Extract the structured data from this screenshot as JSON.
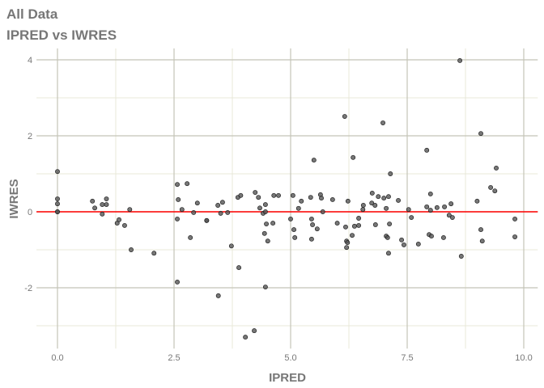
{
  "chart_data": {
    "type": "scatter",
    "title": "All Data",
    "subtitle": "IPRED vs IWRES",
    "xlabel": "IPRED",
    "ylabel": "IWRES",
    "xlim": [
      -0.45,
      10.3
    ],
    "ylim": [
      -3.6,
      4.3
    ],
    "xticks": [
      0,
      2.5,
      5,
      7.5,
      10
    ],
    "xtick_labels": [
      "0.0",
      "2.5",
      "5.0",
      "7.5",
      "10.0"
    ],
    "yticks": [
      -2,
      0,
      2,
      4
    ],
    "ytick_labels": [
      "-2",
      "0",
      "2",
      "4"
    ],
    "grid": true,
    "reference_line": {
      "y": 0,
      "color": "#ff0000"
    },
    "point_color": "#555555",
    "points": [
      [
        0,
        1.06
      ],
      [
        0,
        0.34
      ],
      [
        0,
        0.21
      ],
      [
        0,
        0
      ],
      [
        0,
        0
      ],
      [
        0.75,
        0.28
      ],
      [
        0.8,
        0.1
      ],
      [
        0.96,
        0.19
      ],
      [
        0.96,
        -0.06
      ],
      [
        1.05,
        0.34
      ],
      [
        1.05,
        0.19
      ],
      [
        1.28,
        -0.3
      ],
      [
        1.32,
        -0.21
      ],
      [
        1.44,
        -0.36
      ],
      [
        1.55,
        0.06
      ],
      [
        1.58,
        -1.0
      ],
      [
        2.07,
        -1.09
      ],
      [
        2.57,
        0.72
      ],
      [
        2.78,
        0.74
      ],
      [
        2.59,
        0.32
      ],
      [
        2.67,
        0.06
      ],
      [
        2.57,
        -0.19
      ],
      [
        2.85,
        -0.68
      ],
      [
        2.92,
        -0.02
      ],
      [
        3.0,
        0.23
      ],
      [
        2.57,
        -1.85
      ],
      [
        3.2,
        -0.23
      ],
      [
        3.2,
        -0.23
      ],
      [
        3.45,
        -2.21
      ],
      [
        3.89,
        -1.47
      ],
      [
        4.46,
        -1.98
      ],
      [
        4.03,
        -3.3
      ],
      [
        4.22,
        -3.13
      ],
      [
        3.73,
        -0.9
      ],
      [
        3.44,
        0.17
      ],
      [
        3.54,
        0.25
      ],
      [
        3.5,
        -0.04
      ],
      [
        3.65,
        -0.02
      ],
      [
        3.87,
        0.38
      ],
      [
        3.93,
        0.43
      ],
      [
        4.24,
        0.51
      ],
      [
        4.31,
        0.38
      ],
      [
        4.34,
        0.1
      ],
      [
        4.46,
        0.19
      ],
      [
        4.41,
        -0.04
      ],
      [
        4.46,
        0
      ],
      [
        4.48,
        -0.32
      ],
      [
        4.62,
        -0.3
      ],
      [
        4.44,
        -0.57
      ],
      [
        4.51,
        -0.77
      ],
      [
        4.64,
        0.43
      ],
      [
        6.16,
        2.51
      ],
      [
        6.98,
        2.34
      ],
      [
        9.08,
        2.06
      ],
      [
        5.5,
        1.36
      ],
      [
        6.34,
        1.43
      ],
      [
        7.92,
        1.62
      ],
      [
        7.14,
        1.0
      ],
      [
        9.41,
        1.15
      ],
      [
        9.29,
        0.64
      ],
      [
        9.38,
        0.55
      ],
      [
        8.63,
        3.98
      ],
      [
        4.74,
        0.43
      ],
      [
        5.05,
        0.43
      ],
      [
        5.43,
        0.38
      ],
      [
        5.64,
        0.45
      ],
      [
        5.66,
        0.36
      ],
      [
        5.9,
        0.32
      ],
      [
        6.23,
        0.28
      ],
      [
        5.23,
        0.28
      ],
      [
        5.17,
        0.09
      ],
      [
        5.69,
        0
      ],
      [
        6.75,
        0.49
      ],
      [
        6.88,
        0.4
      ],
      [
        7.0,
        0.36
      ],
      [
        7.1,
        0.4
      ],
      [
        7.31,
        0.3
      ],
      [
        6.74,
        0.23
      ],
      [
        6.81,
        0.17
      ],
      [
        6.56,
        0.17
      ],
      [
        6.55,
        0.06
      ],
      [
        7.05,
        0.09
      ],
      [
        8.0,
        0.47
      ],
      [
        9.0,
        0.28
      ],
      [
        7.92,
        0.13
      ],
      [
        8.14,
        0.11
      ],
      [
        8.3,
        0.13
      ],
      [
        8.44,
        0.21
      ],
      [
        8.0,
        0.04
      ],
      [
        7.53,
        0.06
      ],
      [
        5.0,
        -0.19
      ],
      [
        5.45,
        -0.19
      ],
      [
        5.47,
        -0.34
      ],
      [
        5.57,
        -0.45
      ],
      [
        5.07,
        -0.47
      ],
      [
        5.09,
        -0.68
      ],
      [
        5.45,
        -0.72
      ],
      [
        6.0,
        -0.3
      ],
      [
        6.18,
        -0.4
      ],
      [
        6.46,
        -0.17
      ],
      [
        6.37,
        -0.38
      ],
      [
        6.46,
        -0.36
      ],
      [
        6.32,
        -0.62
      ],
      [
        6.2,
        -0.77
      ],
      [
        6.22,
        -0.81
      ],
      [
        6.2,
        -0.94
      ],
      [
        6.82,
        -0.34
      ],
      [
        7.12,
        -0.32
      ],
      [
        7.05,
        -0.64
      ],
      [
        7.08,
        -0.68
      ],
      [
        7.1,
        -1.09
      ],
      [
        7.38,
        -0.74
      ],
      [
        7.43,
        -0.87
      ],
      [
        7.59,
        -0.15
      ],
      [
        7.74,
        -0.85
      ],
      [
        7.97,
        -0.6
      ],
      [
        8.02,
        -0.64
      ],
      [
        8.28,
        -0.68
      ],
      [
        8.4,
        -0.09
      ],
      [
        8.47,
        -0.15
      ],
      [
        8.66,
        -1.17
      ],
      [
        9.08,
        -0.47
      ],
      [
        9.11,
        -0.77
      ],
      [
        9.81,
        -0.19
      ],
      [
        9.81,
        -0.66
      ]
    ]
  }
}
